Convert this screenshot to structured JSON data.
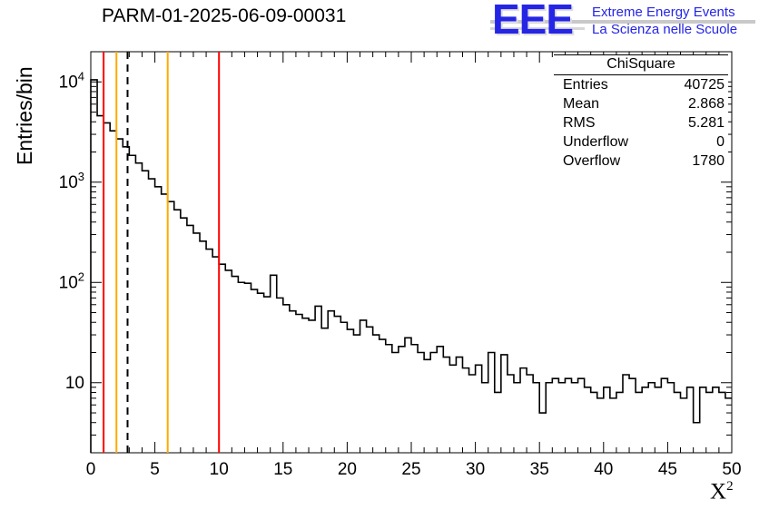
{
  "header": {
    "title": "PARM-01-2025-06-09-00031"
  },
  "logo": {
    "text": "EEE",
    "line1": "Extreme Energy Events",
    "line2": "La Scienza nelle Scuole",
    "color": "#2525e6"
  },
  "stats": {
    "title": "ChiSquare",
    "rows": [
      {
        "label": "Entries",
        "value": "40725"
      },
      {
        "label": "Mean",
        "value": "2.868"
      },
      {
        "label": "RMS",
        "value": "5.281"
      },
      {
        "label": "Underflow",
        "value": "0"
      },
      {
        "label": "Overflow",
        "value": "1780"
      }
    ]
  },
  "axes": {
    "y_label": "Entries/bin",
    "x_label_base": "X",
    "x_label_exp": "2"
  },
  "chart_data": {
    "type": "histogram",
    "title": "PARM-01-2025-06-09-00031",
    "xlabel": "X^2",
    "ylabel": "Entries/bin",
    "xlim": [
      0,
      50
    ],
    "ylim": [
      2,
      20000
    ],
    "ylog": true,
    "grid": false,
    "bin_start": 0,
    "bin_width": 0.5,
    "x_major_ticks": [
      0,
      5,
      10,
      15,
      20,
      25,
      30,
      35,
      40,
      45,
      50
    ],
    "x_minor_step": 1,
    "line_color": "#000000",
    "values": [
      10500,
      4600,
      3900,
      3250,
      2700,
      2250,
      1850,
      1550,
      1300,
      1080,
      900,
      760,
      640,
      530,
      440,
      370,
      310,
      258,
      215,
      180,
      152,
      132,
      115,
      100,
      98,
      85,
      78,
      72,
      118,
      70,
      60,
      52,
      48,
      44,
      42,
      58,
      35,
      52,
      46,
      40,
      34,
      30,
      42,
      36,
      30,
      27,
      24,
      20,
      23,
      28,
      24,
      20,
      17,
      20,
      23,
      18,
      15,
      18,
      14,
      12,
      15,
      10,
      20,
      8,
      19,
      12,
      10,
      14,
      12,
      10,
      5,
      10,
      11,
      10,
      11,
      10,
      11,
      9,
      8,
      7,
      9,
      7,
      8,
      12,
      11,
      8,
      9,
      10,
      9,
      11,
      10,
      8,
      7,
      9,
      4,
      9,
      8,
      9,
      8,
      7
    ],
    "marker_lines": [
      {
        "x": 1,
        "color": "#ff0000",
        "style": "solid"
      },
      {
        "x": 2,
        "color": "#ffaa00",
        "style": "solid"
      },
      {
        "x": 2.868,
        "color": "#000000",
        "style": "dashed"
      },
      {
        "x": 6,
        "color": "#ffaa00",
        "style": "solid"
      },
      {
        "x": 10,
        "color": "#ff0000",
        "style": "solid"
      }
    ]
  }
}
